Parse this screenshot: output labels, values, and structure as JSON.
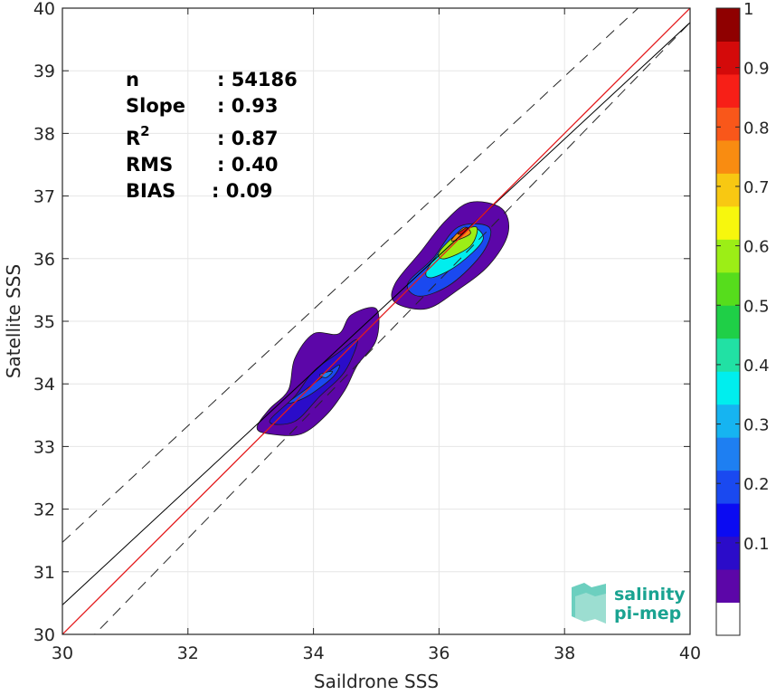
{
  "chart_data": {
    "type": "heatmap",
    "xlabel": "Saildrone SSS",
    "ylabel": "Satellite SSS",
    "xlim": [
      30,
      40
    ],
    "ylim": [
      30,
      40
    ],
    "xticks": [
      "30",
      "32",
      "34",
      "36",
      "38",
      "40"
    ],
    "yticks": [
      "30",
      "31",
      "32",
      "33",
      "34",
      "35",
      "36",
      "37",
      "38",
      "39",
      "40"
    ],
    "grid": true,
    "stats": [
      {
        "label": "n",
        "value": ": 54186"
      },
      {
        "label": "Slope",
        "value": ": 0.93"
      },
      {
        "label": "R",
        "superscript": "2",
        "value": ": 0.87"
      },
      {
        "label": "RMS",
        "value": ": 0.40"
      },
      {
        "label": "BIAS",
        "value": ": 0.09"
      }
    ],
    "reference_lines": {
      "identity": {
        "from": [
          30,
          30
        ],
        "to": [
          40,
          40
        ],
        "color": "#e41a1c"
      },
      "fit": {
        "from": [
          30,
          30.47
        ],
        "to": [
          40,
          39.77
        ],
        "color": "#000000"
      },
      "upper_bound": {
        "from": [
          30,
          31.47
        ],
        "to": [
          40,
          40.77
        ],
        "style": "dashed"
      },
      "lower_bound": {
        "from": [
          30,
          29.47
        ],
        "to": [
          40,
          39.77
        ],
        "style": "dashed"
      }
    },
    "density_clusters": [
      {
        "name_hidden": true,
        "outer": [
          [
            33.1,
            33.3
          ],
          [
            33.3,
            33.6
          ],
          [
            33.6,
            33.9
          ],
          [
            33.7,
            34.4
          ],
          [
            34.0,
            34.8
          ],
          [
            34.4,
            34.8
          ],
          [
            34.6,
            35.1
          ],
          [
            35.0,
            35.2
          ],
          [
            35.0,
            34.7
          ],
          [
            34.7,
            34.3
          ],
          [
            34.5,
            33.9
          ],
          [
            34.2,
            33.5
          ],
          [
            33.8,
            33.2
          ],
          [
            33.3,
            33.2
          ]
        ],
        "levels": [
          {
            "level": 0.1,
            "points": [
              [
                33.3,
                33.4
              ],
              [
                33.7,
                33.8
              ],
              [
                34.0,
                34.2
              ],
              [
                34.4,
                34.5
              ],
              [
                34.7,
                34.7
              ],
              [
                34.5,
                34.2
              ],
              [
                34.1,
                33.8
              ],
              [
                33.7,
                33.4
              ]
            ]
          },
          {
            "level": 0.2,
            "points": [
              [
                33.6,
                33.7
              ],
              [
                34.0,
                34.0
              ],
              [
                34.4,
                34.3
              ],
              [
                34.3,
                34.1
              ],
              [
                33.9,
                33.8
              ]
            ]
          },
          {
            "level": 0.3,
            "points": [
              [
                34.1,
                34.15
              ],
              [
                34.3,
                34.2
              ],
              [
                34.2,
                34.1
              ]
            ]
          }
        ]
      },
      {
        "name_hidden": true,
        "outer": [
          [
            35.3,
            35.6
          ],
          [
            35.7,
            36.1
          ],
          [
            36.1,
            36.6
          ],
          [
            36.5,
            36.9
          ],
          [
            37.0,
            36.8
          ],
          [
            37.1,
            36.4
          ],
          [
            36.8,
            35.9
          ],
          [
            36.3,
            35.5
          ],
          [
            35.8,
            35.2
          ],
          [
            35.3,
            35.3
          ]
        ],
        "levels": [
          {
            "level": 0.2,
            "points": [
              [
                35.5,
                35.6
              ],
              [
                35.9,
                36.0
              ],
              [
                36.3,
                36.5
              ],
              [
                36.8,
                36.5
              ],
              [
                36.7,
                36.1
              ],
              [
                36.2,
                35.6
              ],
              [
                35.7,
                35.4
              ]
            ]
          },
          {
            "level": 0.4,
            "points": [
              [
                35.8,
                35.8
              ],
              [
                36.1,
                36.2
              ],
              [
                36.5,
                36.5
              ],
              [
                36.7,
                36.3
              ],
              [
                36.3,
                35.9
              ],
              [
                35.9,
                35.7
              ]
            ]
          },
          {
            "level": 0.6,
            "points": [
              [
                36.0,
                36.1
              ],
              [
                36.3,
                36.4
              ],
              [
                36.6,
                36.5
              ],
              [
                36.5,
                36.2
              ],
              [
                36.1,
                36.0
              ]
            ]
          },
          {
            "level": 0.8,
            "points": [
              [
                36.2,
                36.3
              ],
              [
                36.4,
                36.5
              ],
              [
                36.5,
                36.4
              ],
              [
                36.3,
                36.3
              ]
            ]
          },
          {
            "level": 0.95,
            "points": [
              [
                36.3,
                36.4
              ],
              [
                36.45,
                36.5
              ],
              [
                36.4,
                36.4
              ]
            ]
          }
        ]
      }
    ],
    "colorbar": {
      "ticks": [
        "0.1",
        "0.2",
        "0.3",
        "0.4",
        "0.5",
        "0.6",
        "0.7",
        "0.8",
        "0.9",
        "1"
      ],
      "colors": [
        "#ffffff",
        "#5c06a8",
        "#2b0cc9",
        "#0b0bf2",
        "#1a49f0",
        "#1e7ff2",
        "#16b4f1",
        "#00eeee",
        "#21e1a4",
        "#1fcf47",
        "#56dd1c",
        "#9cee16",
        "#f7f70d",
        "#f8c812",
        "#f98c11",
        "#f9571a",
        "#f71f17",
        "#d40a0a",
        "#8f0000"
      ]
    }
  },
  "logo": {
    "line1": "salinity",
    "line2": "pi-mep",
    "color": "#1aa391"
  }
}
